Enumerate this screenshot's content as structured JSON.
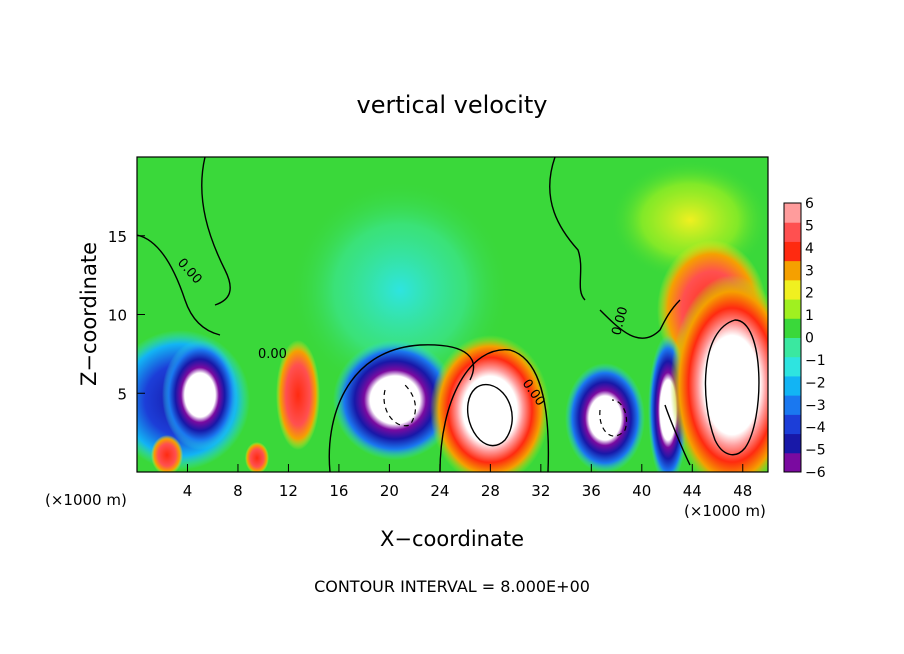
{
  "chart_data": {
    "type": "heatmap",
    "title": "vertical velocity",
    "xlabel": "X−coordinate",
    "ylabel": "Z−coordinate",
    "x_unit_label": "(×1000 m)",
    "footer": "CONTOUR INTERVAL = 8.000E+00",
    "x_ticks": [
      4,
      8,
      12,
      16,
      20,
      24,
      28,
      32,
      36,
      40,
      44,
      48
    ],
    "y_ticks": [
      5,
      10,
      15
    ],
    "xlim": [
      0,
      50
    ],
    "ylim": [
      0,
      20
    ],
    "colorbar": {
      "ticks": [
        "6",
        "5",
        "4",
        "3",
        "2",
        "1",
        "0",
        "−1",
        "−2",
        "−3",
        "−4",
        "−5",
        "−6"
      ],
      "range": [
        -6,
        6
      ],
      "colors": [
        "#7a0aa0",
        "#1818a8",
        "#1c3ed8",
        "#1a78f0",
        "#12b4f4",
        "#2ee4e0",
        "#3ae8a0",
        "#3ad83a",
        "#a0f020",
        "#f0f020",
        "#f5a000",
        "#ff2a10",
        "#ff5050",
        "#ff9c9c"
      ]
    },
    "contour_labels": [
      "0.00",
      "0.00",
      "0.00",
      "0.00",
      "0.00"
    ],
    "features": [
      {
        "x": 5,
        "z": 5,
        "w": -6
      },
      {
        "x": 13,
        "z": 5,
        "w": 5
      },
      {
        "x": 20,
        "z": 5,
        "w": -6
      },
      {
        "x": 28,
        "z": 4,
        "w": 7
      },
      {
        "x": 37,
        "z": 3.5,
        "w": -6
      },
      {
        "x": 42.5,
        "z": 4,
        "w": -6
      },
      {
        "x": 46.5,
        "z": 6,
        "w": 7
      },
      {
        "x": 45,
        "z": 12,
        "w": 4
      },
      {
        "x": 2.5,
        "z": 8,
        "w": -5
      },
      {
        "x": 1.5,
        "z": 1,
        "w": 4
      },
      {
        "x": 9.5,
        "z": 1,
        "w": 4
      },
      {
        "x": 20,
        "z": 14,
        "w": -2
      }
    ]
  }
}
